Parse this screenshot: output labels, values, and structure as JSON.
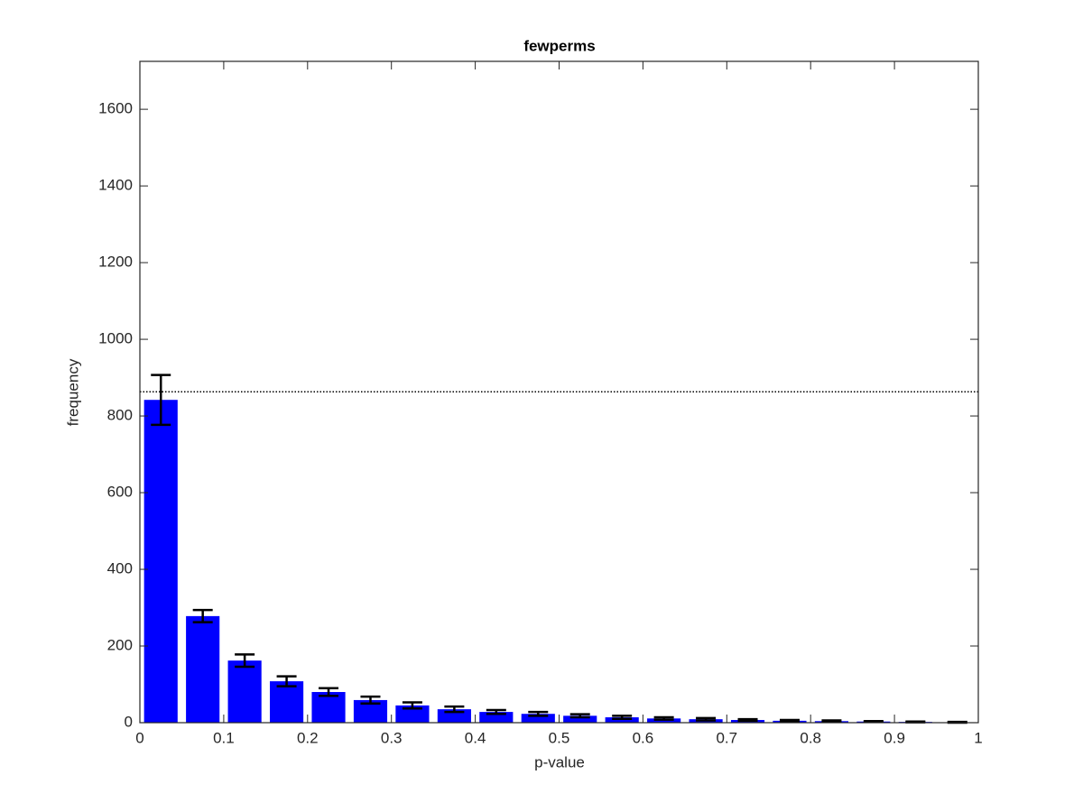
{
  "chart_data": {
    "type": "bar",
    "title": "fewperms",
    "x_label": "p-value",
    "y_label": "frequency",
    "x": [
      0.025,
      0.075,
      0.125,
      0.175,
      0.225,
      0.275,
      0.325,
      0.375,
      0.425,
      0.475,
      0.525,
      0.575,
      0.625,
      0.675,
      0.725,
      0.775,
      0.825,
      0.875,
      0.925,
      0.975
    ],
    "values": [
      842,
      278,
      162,
      108,
      80,
      59,
      45,
      35,
      28,
      23,
      18,
      14,
      11,
      9,
      7,
      5,
      4,
      3,
      2,
      1
    ],
    "errors": [
      65,
      16,
      16,
      13,
      10,
      9,
      8,
      7,
      5,
      5,
      4,
      4,
      3,
      3,
      2,
      2,
      2,
      1,
      1,
      1
    ],
    "color": "#0000ff",
    "reference_line": 863,
    "xlim": [
      0,
      1
    ],
    "xticks": [
      0,
      0.1,
      0.2,
      0.3,
      0.4,
      0.5,
      0.6,
      0.7,
      0.8,
      0.9,
      1
    ],
    "ylim": [
      0,
      1725
    ],
    "yticks": [
      0,
      200,
      400,
      600,
      800,
      1000,
      1200,
      1400,
      1600
    ]
  }
}
